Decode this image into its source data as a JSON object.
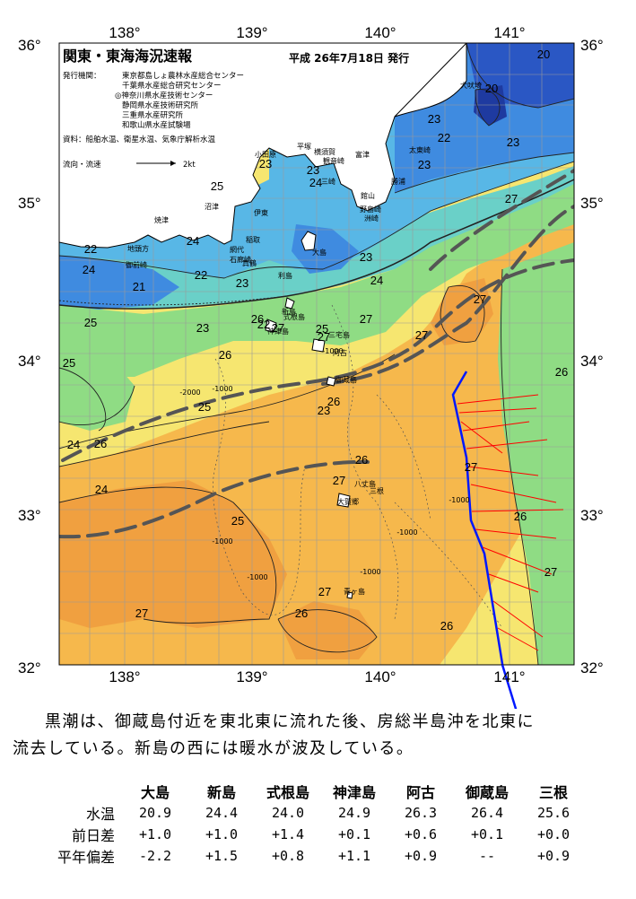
{
  "title": "関東・東海海況速報",
  "issue_date": "平成 26年7月18日 発行",
  "issuer_label": "発行機関：",
  "issuers": [
    "東京都島しょ農林水産総合センター",
    "千葉県水産総合研究センター",
    "◎神奈川県水産技術センター",
    "静岡県水産技術研究所",
    "三重県水産研究所",
    "和歌山県水産試験場"
  ],
  "sources": "資料：船舶水温、衛星水温、気象庁解析水温",
  "flow_legend": {
    "label": "流向・流速",
    "value": "2kt"
  },
  "axes": {
    "lon_ticks": [
      "138°",
      "139°",
      "140°",
      "141°"
    ],
    "lat_ticks": [
      "36°",
      "35°",
      "34°",
      "33°",
      "32°"
    ]
  },
  "sst_labels": [
    "20",
    "20",
    "23",
    "22",
    "23",
    "23",
    "27",
    "25",
    "23",
    "23",
    "24",
    "24",
    "22",
    "24",
    "21",
    "22",
    "23",
    "23",
    "24",
    "22",
    "25",
    "23",
    "27",
    "25",
    "25",
    "26",
    "25",
    "23",
    "24",
    "26",
    "26",
    "24",
    "25",
    "27",
    "26",
    "27",
    "27",
    "27",
    "26",
    "27",
    "26",
    "26",
    "27",
    "27",
    "27",
    "27",
    "26",
    "26"
  ],
  "place_names": {
    "top": [
      "犬吠埼",
      "太東崎",
      "勝浦",
      "洲崎",
      "野島崎",
      "館山",
      "富津",
      "観音崎",
      "横須賀",
      "平塚",
      "三崎",
      "小田原",
      "真鶴",
      "伊東",
      "石廊崎",
      "網代",
      "稲取",
      "御前崎",
      "焼津",
      "地頭方",
      "沼津"
    ],
    "islands": [
      "大島",
      "利島",
      "新島",
      "式根島",
      "神津島",
      "三宅島",
      "阿古",
      "御蔵島",
      "八丈島",
      "大賀郷",
      "三根",
      "青ヶ島"
    ]
  },
  "depth_labels": [
    "-1000",
    "-2000",
    "-1000",
    "-1000",
    "-1000",
    "-1000",
    "-1000",
    "-1000"
  ],
  "summary": {
    "line1": "黒潮は、御蔵島付近を東北東に流れた後、房総半島沖を北東に",
    "line2": "流去している。新島の西には暖水が波及している。"
  },
  "table": {
    "sites": [
      "大島",
      "新島",
      "式根島",
      "神津島",
      "阿古",
      "御蔵島",
      "三根"
    ],
    "rows": [
      {
        "label": "水温",
        "values": [
          "20.9",
          "24.4",
          "24.0",
          "24.9",
          "26.3",
          "26.4",
          "25.6"
        ]
      },
      {
        "label": "前日差",
        "values": [
          "+1.0",
          "+1.0",
          "+1.4",
          "+0.1",
          "+0.6",
          "+0.1",
          "+0.0"
        ]
      },
      {
        "label": "平年偏差",
        "values": [
          "-2.2",
          "+1.5",
          "+0.8",
          "+1.1",
          "+0.9",
          "--",
          "+0.9"
        ]
      }
    ]
  },
  "colors": {
    "sst_20": "#2a57c4",
    "sst_22": "#3f8be0",
    "sst_23": "#58b7e6",
    "sst_24": "#6ad0c8",
    "sst_25": "#8fdc84",
    "sst_26": "#f6e670",
    "sst_27": "#f6b84c",
    "sst_28": "#f09a3c",
    "land": "#ffffff",
    "kuroshio_axis": "#555555",
    "ship_track": "#0018ff",
    "current_vector": "#ff0000"
  }
}
